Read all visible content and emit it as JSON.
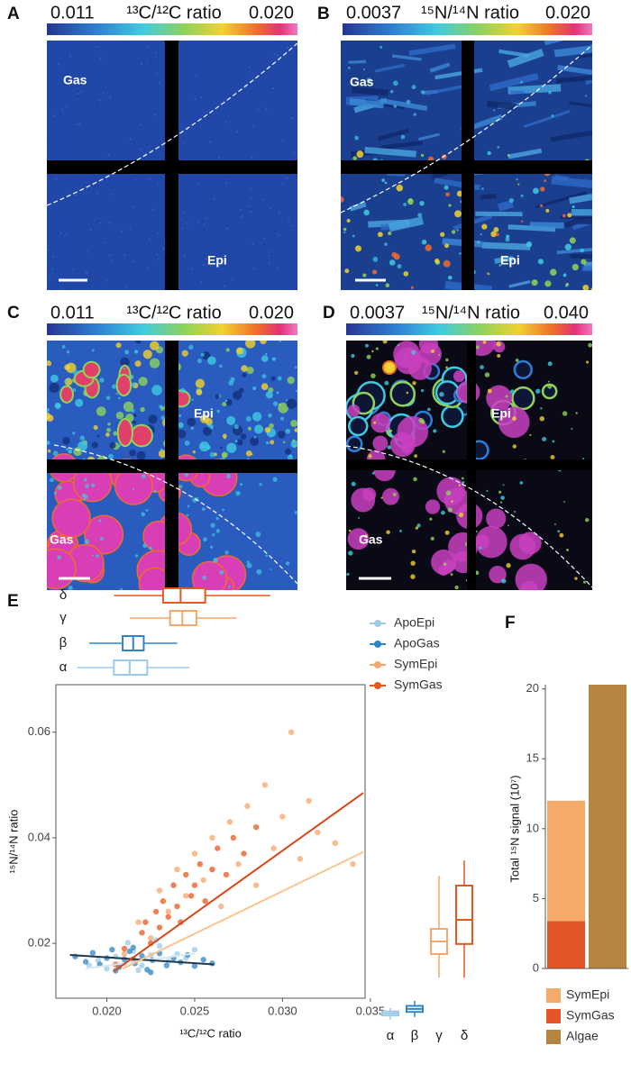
{
  "panels": [
    {
      "label": "A",
      "colorbar": {
        "min": "0.011",
        "name": "¹³C/¹²C ratio",
        "max": "0.020"
      },
      "regions": [
        "Gas",
        "Epi"
      ]
    },
    {
      "label": "B",
      "colorbar": {
        "min": "0.0037",
        "name": "¹⁵N/¹⁴N ratio",
        "max": "0.020"
      },
      "regions": [
        "Gas",
        "Epi"
      ]
    },
    {
      "label": "C",
      "colorbar": {
        "min": "0.011",
        "name": "¹³C/¹²C ratio",
        "max": "0.020"
      },
      "regions": [
        "Epi",
        "Gas"
      ]
    },
    {
      "label": "D",
      "colorbar": {
        "min": "0.0037",
        "name": "¹⁵N/¹⁴N ratio",
        "max": "0.040"
      },
      "regions": [
        "Epi",
        "Gas"
      ]
    }
  ],
  "chart_data": [
    {
      "type": "scatter",
      "panel_label": "E",
      "xlabel": "¹³C/¹²C ratio",
      "ylabel": "¹⁵N/¹⁴N ratio",
      "xlim": [
        0.0171,
        0.0347
      ],
      "ylim": [
        0.0096,
        0.069
      ],
      "xticks": [
        {
          "value": 0.02,
          "label": "0.020"
        },
        0.025,
        {
          "value": 0.03,
          "label": "0.030"
        },
        0.035
      ],
      "yticks": [
        0.02,
        0.04,
        0.06
      ],
      "y_box_lim": [
        0.004,
        0.038
      ],
      "series": [
        {
          "name": "ApoEpi",
          "group": "α",
          "color": "#9ccbe8",
          "fit_color": "#d4e9f5",
          "x": [
            0.019,
            0.0195,
            0.02,
            0.0205,
            0.021,
            0.0215,
            0.022,
            0.0225,
            0.023,
            0.0235,
            0.024,
            0.0245,
            0.025,
            0.0212,
            0.0218,
            0.0228
          ],
          "y": [
            0.0158,
            0.0168,
            0.0152,
            0.0175,
            0.0162,
            0.0185,
            0.0158,
            0.0178,
            0.0195,
            0.0166,
            0.018,
            0.0172,
            0.0188,
            0.0201,
            0.0149,
            0.0206
          ],
          "fit": {
            "x": [
              0.0188,
              0.025
            ],
            "y": [
              0.0152,
              0.0181
            ]
          },
          "x_box": [
            0.0183,
            0.0204,
            0.0213,
            0.0223,
            0.0247
          ],
          "y_box": [
            0.0055,
            0.0063,
            0.0067,
            0.0071,
            0.0078
          ]
        },
        {
          "name": "ApoGas",
          "group": "β",
          "color": "#2f86c6",
          "fit_color": "#1d3850",
          "x": [
            0.0182,
            0.0188,
            0.0192,
            0.0196,
            0.02,
            0.0203,
            0.0207,
            0.021,
            0.0213,
            0.0216,
            0.022,
            0.0223,
            0.0226,
            0.023,
            0.0234,
            0.0238,
            0.0242,
            0.0246,
            0.025,
            0.0255,
            0.026,
            0.0215,
            0.0225,
            0.0205
          ],
          "y": [
            0.0175,
            0.0165,
            0.0182,
            0.016,
            0.0172,
            0.0188,
            0.0155,
            0.017,
            0.0185,
            0.0162,
            0.0176,
            0.015,
            0.0168,
            0.0181,
            0.0158,
            0.0172,
            0.0164,
            0.0178,
            0.0157,
            0.0169,
            0.0162,
            0.0192,
            0.0145,
            0.0148
          ],
          "fit": {
            "x": [
              0.0179,
              0.0261
            ],
            "y": [
              0.0178,
              0.016
            ]
          },
          "x_box": [
            0.019,
            0.0209,
            0.0215,
            0.0221,
            0.024
          ],
          "y_box": [
            0.006,
            0.007,
            0.0076,
            0.0082,
            0.0092
          ]
        },
        {
          "name": "SymEpi",
          "group": "γ",
          "color": "#f6a66b",
          "fit_color": "#fbc48f",
          "x": [
            0.021,
            0.0218,
            0.0225,
            0.023,
            0.0235,
            0.024,
            0.0245,
            0.025,
            0.0255,
            0.026,
            0.0265,
            0.027,
            0.0275,
            0.028,
            0.0285,
            0.029,
            0.0295,
            0.03,
            0.0305,
            0.031,
            0.0315,
            0.032,
            0.033,
            0.034
          ],
          "y": [
            0.018,
            0.024,
            0.021,
            0.03,
            0.026,
            0.034,
            0.029,
            0.037,
            0.032,
            0.04,
            0.027,
            0.043,
            0.035,
            0.046,
            0.031,
            0.05,
            0.038,
            0.044,
            0.06,
            0.036,
            0.047,
            0.041,
            0.039,
            0.035
          ],
          "fit": {
            "x": [
              0.0209,
              0.0346
            ],
            "y": [
              0.0152,
              0.0373
            ]
          },
          "x_box": [
            0.0213,
            0.0236,
            0.0243,
            0.0251,
            0.0274
          ],
          "y_box": [
            0.0138,
            0.0185,
            0.021,
            0.0235,
            0.034
          ]
        },
        {
          "name": "SymGas",
          "group": "δ",
          "color": "#e8571c",
          "fit_color": "#d9481a",
          "x": [
            0.0205,
            0.021,
            0.0215,
            0.022,
            0.0222,
            0.0225,
            0.0228,
            0.023,
            0.0232,
            0.0235,
            0.0238,
            0.024,
            0.0242,
            0.0245,
            0.0248,
            0.025,
            0.0253,
            0.0256,
            0.026,
            0.0263,
            0.0268,
            0.0272,
            0.0278,
            0.0285
          ],
          "y": [
            0.016,
            0.019,
            0.017,
            0.022,
            0.024,
            0.02,
            0.026,
            0.023,
            0.028,
            0.025,
            0.031,
            0.027,
            0.024,
            0.033,
            0.029,
            0.031,
            0.035,
            0.028,
            0.034,
            0.038,
            0.033,
            0.04,
            0.037,
            0.042
          ],
          "fit": {
            "x": [
              0.0204,
              0.0346
            ],
            "y": [
              0.0147,
              0.0485
            ]
          },
          "x_box": [
            0.0204,
            0.0232,
            0.0242,
            0.0256,
            0.0293
          ],
          "y_box": [
            0.0138,
            0.0205,
            0.0253,
            0.0321,
            0.0371
          ]
        }
      ]
    },
    {
      "type": "bar",
      "panel_label": "F",
      "ylabel": "Total ¹⁵N signal (10⁷)",
      "stacked": true,
      "categories": [
        null,
        null
      ],
      "ylim": [
        0,
        20.3
      ],
      "yticks": [
        0,
        5,
        10,
        15,
        20
      ],
      "series": [
        {
          "name": "SymEpi",
          "color": "#f5aa6a",
          "values": [
            8.6,
            null
          ]
        },
        {
          "name": "SymGas",
          "color": "#e4562a",
          "values": [
            3.4,
            null
          ]
        },
        {
          "name": "Algae",
          "color": "#b5853f",
          "values": [
            null,
            20.3
          ]
        }
      ]
    }
  ]
}
